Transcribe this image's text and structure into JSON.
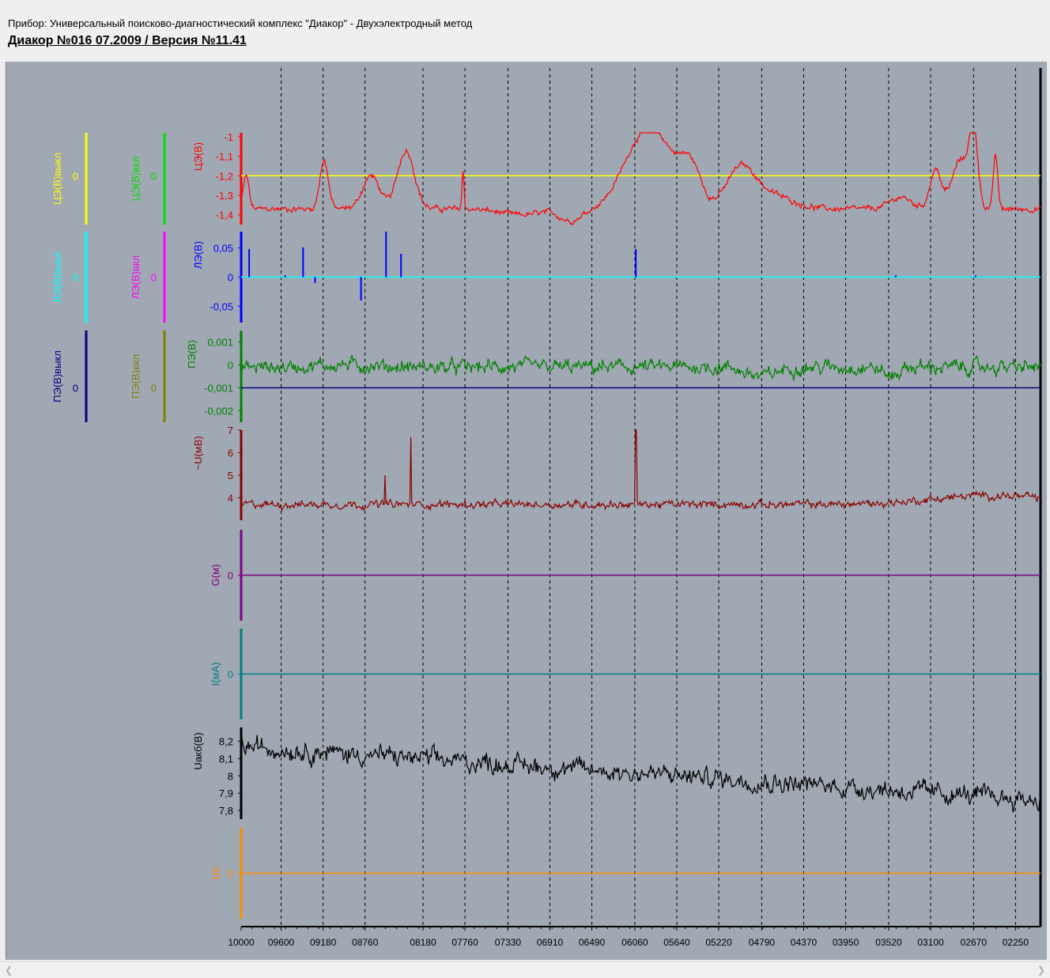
{
  "header": {
    "device_line": "Прибор: Универсальный поисково-диагностический комплекс \"Диакор\" - Двухэлектродный метод",
    "version_line": "Диакор  №016 07.2009  / Версия  №11.41"
  },
  "chart_data": {
    "type": "line",
    "x_ticks": [
      "10000",
      "09600",
      "09180",
      "08760",
      "08180",
      "07760",
      "07330",
      "06910",
      "06490",
      "06060",
      "05640",
      "05220",
      "04790",
      "04370",
      "03950",
      "03520",
      "03100",
      "02670",
      "02250"
    ],
    "x_range": [
      10000,
      2000
    ],
    "grid": "vertical dashed",
    "panels": [
      {
        "id": "czeb",
        "colors": {
          "main": "#ff0000",
          "ref": "#ffff00"
        },
        "axes": [
          {
            "label": "ЦЭ(В)выкл",
            "ticks": [
              "0"
            ],
            "color": "#ffff00"
          },
          {
            "label": "ЦЭ(В)вкл",
            "ticks": [
              "0"
            ],
            "color": "#00e000"
          },
          {
            "label": "ЦЭ(В)",
            "ticks": [
              "-1",
              "-1,1",
              "-1,2",
              "-1,3",
              "-1,4"
            ],
            "color": "#ff0000"
          }
        ],
        "ylim": [
          -1.45,
          -0.98
        ],
        "ref_value": -1.2,
        "series_style": "noisy-line",
        "baseline": -1.37,
        "noise": 0.012,
        "features": [
          {
            "x": 9950,
            "dy": 0.17,
            "w": 40
          },
          {
            "x": 9170,
            "dy": 0.25,
            "w": 60
          },
          {
            "x": 8700,
            "dy": 0.17,
            "w": 120
          },
          {
            "x": 8350,
            "dy": 0.3,
            "w": 120
          },
          {
            "x": 7780,
            "dy": 0.2,
            "w": 15
          },
          {
            "x": 7200,
            "dy": -0.03,
            "w": 300
          },
          {
            "x": 6700,
            "dy": -0.06,
            "w": 150
          },
          {
            "x": 6050,
            "dy": 0.25,
            "w": 250
          },
          {
            "x": 5800,
            "dy": 0.28,
            "w": 250
          },
          {
            "x": 5500,
            "dy": 0.2,
            "w": 150
          },
          {
            "x": 5000,
            "dy": 0.2,
            "w": 200
          },
          {
            "x": 4700,
            "dy": 0.07,
            "w": 300
          },
          {
            "x": 3400,
            "dy": 0.06,
            "w": 150
          },
          {
            "x": 3050,
            "dy": 0.2,
            "w": 80
          },
          {
            "x": 2800,
            "dy": 0.25,
            "w": 120
          },
          {
            "x": 2670,
            "dy": 0.38,
            "w": 60
          },
          {
            "x": 2450,
            "dy": 0.28,
            "w": 30
          }
        ]
      },
      {
        "id": "lzeb",
        "colors": {
          "main": "#0000ff",
          "ref": "#00ffff"
        },
        "axes": [
          {
            "label": "ЛЭ(В)выкл",
            "ticks": [
              "0"
            ],
            "color": "#00ffff"
          },
          {
            "label": "ЛЭ(В)вкл",
            "ticks": [
              "0"
            ],
            "color": "#ff00ff"
          },
          {
            "label": "ЛЭ(В)",
            "ticks": [
              "0,05",
              "0",
              "-0,05"
            ],
            "color": "#0000ff"
          }
        ],
        "ylim": [
          -0.078,
          0.078
        ],
        "ref_value": 0,
        "series_style": "spikes",
        "spikes": [
          {
            "x": 9920,
            "v": 0.048
          },
          {
            "x": 9560,
            "v": 0.003
          },
          {
            "x": 9380,
            "v": 0.051
          },
          {
            "x": 9260,
            "v": -0.01
          },
          {
            "x": 8800,
            "v": -0.04
          },
          {
            "x": 8550,
            "v": 0.078
          },
          {
            "x": 8400,
            "v": 0.04
          },
          {
            "x": 6050,
            "v": 0.048
          },
          {
            "x": 3450,
            "v": 0.003
          },
          {
            "x": 2650,
            "v": 0.003
          }
        ]
      },
      {
        "id": "pzeb",
        "colors": {
          "main": "#008000",
          "ref": "#000080"
        },
        "axes": [
          {
            "label": "ПЭ(В)выкл",
            "ticks": [
              "0"
            ],
            "color": "#000080"
          },
          {
            "label": "ПЭ(В)вкл",
            "ticks": [
              "0"
            ],
            "color": "#808000"
          },
          {
            "label": "ПЭ(В)",
            "ticks": [
              "0,001",
              "0",
              "-0,001",
              "-0,002"
            ],
            "color": "#008000"
          }
        ],
        "ylim": [
          -0.0025,
          0.0015
        ],
        "ref_value": -0.001,
        "series_style": "noisy-line",
        "baseline": -0.0001,
        "noise": 0.00025,
        "features": [
          {
            "x": 9000,
            "dy": 0.0001,
            "w": 400
          },
          {
            "x": 4800,
            "dy": -0.0004,
            "w": 200
          },
          {
            "x": 3500,
            "dy": -0.0004,
            "w": 100
          }
        ]
      },
      {
        "id": "u",
        "colors": {
          "main": "#8b0000"
        },
        "axes": [
          {
            "label": "~U(мВ)",
            "ticks": [
              "7",
              "6",
              "5",
              "4"
            ],
            "color": "#8b0000"
          }
        ],
        "ylim": [
          3,
          7
        ],
        "series_style": "noisy-line",
        "baseline": 3.7,
        "noise": 0.14,
        "features": [
          {
            "x": 2500,
            "dy": 0.4,
            "w": 800
          }
        ],
        "spikes": [
          {
            "x": 8560,
            "v": 5.0
          },
          {
            "x": 8300,
            "v": 6.7
          },
          {
            "x": 6050,
            "v": 7.0
          }
        ]
      },
      {
        "id": "g",
        "colors": {
          "main": "#800080"
        },
        "axes": [
          {
            "label": "G(м)",
            "ticks": [
              "0"
            ],
            "color": "#800080"
          }
        ],
        "ylim": [
          -1,
          1
        ],
        "ref_value": 0
      },
      {
        "id": "i",
        "colors": {
          "main": "#008080"
        },
        "axes": [
          {
            "label": "I(мА)",
            "ticks": [
              "0"
            ],
            "color": "#008080"
          }
        ],
        "ylim": [
          -1,
          1
        ],
        "ref_value": 0
      },
      {
        "id": "uakb",
        "colors": {
          "main": "#000000"
        },
        "axes": [
          {
            "label": "Uакб(В)",
            "ticks": [
              "8,2",
              "8,1",
              "8",
              "7,9",
              "7,8"
            ],
            "color": "#000000"
          }
        ],
        "ylim": [
          7.75,
          8.28
        ],
        "series_style": "noisy-line",
        "baseline": 8.15,
        "trend": [
          8.17,
          7.86
        ],
        "noise": 0.045
      },
      {
        "id": "un",
        "colors": {
          "main": "#ff8c00"
        },
        "axes": [
          {
            "label": "Uп",
            "ticks": [
              "0"
            ],
            "color": "#ff8c00"
          }
        ],
        "ylim": [
          -1,
          1
        ],
        "ref_value": 0
      }
    ]
  }
}
